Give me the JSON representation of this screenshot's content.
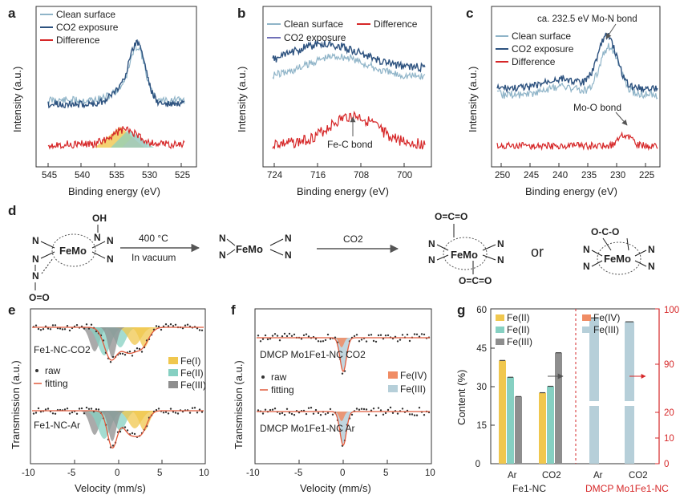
{
  "colors": {
    "clean": "#8fb4c8",
    "co2": "#2d527f",
    "diff": "#d62728",
    "fit": "#e15a3c",
    "fe3": "#f0c74e",
    "fe2": "#86d0c2",
    "fe4": "#8e8e8e",
    "dmcp_fe4": "#f08c64",
    "dmcp_fe3": "#b6cfd9",
    "red_axis": "#d62728"
  },
  "panels": {
    "a": {
      "label": "a",
      "legend": [
        "Clean surface",
        "CO2 exposure",
        "Difference"
      ],
      "xlabel": "Binding energy (eV)",
      "ylabel": "Intensity (a.u.)",
      "xticks": [
        "545",
        "540",
        "535",
        "530",
        "525"
      ]
    },
    "b": {
      "label": "b",
      "legend": [
        "Clean surface",
        "CO2 exposure",
        "Difference"
      ],
      "xlabel": "Binding energy (eV)",
      "ylabel": "Intensity (a.u.)",
      "xticks": [
        "724",
        "716",
        "708",
        "700"
      ],
      "annotation": "Fe-C bond"
    },
    "c": {
      "label": "c",
      "legend": [
        "Clean surface",
        "CO2 exposure",
        "Difference"
      ],
      "xlabel": "Binding energy (eV)",
      "ylabel": "Intensity (a.u.)",
      "xticks": [
        "250",
        "245",
        "240",
        "235",
        "230",
        "225"
      ],
      "annotation_top": "ca. 232.5 eV Mo-N bond",
      "annotation_mid": "Mo-O bond"
    },
    "d": {
      "label": "d",
      "step1_top": "400 °C",
      "step1_bottom": "In vacuum",
      "step2_top": "CO2",
      "or": "or",
      "center": "FeMo",
      "N": "N",
      "OH": "OH",
      "O=O": "O=O",
      "O=C=O": "O=C=O",
      "O-C-O": "O-C-O"
    },
    "e": {
      "label": "e",
      "sample_top": "Fe1-NC-CO2",
      "sample_bottom": "Fe1-NC-Ar",
      "legend_raw": "raw",
      "legend_fit": "fitting",
      "legend_species": [
        "Fe(I)",
        "Fe(II)",
        "Fe(III)"
      ],
      "xlabel": "Velocity (mm/s)",
      "ylabel": "Transmission (a.u.)",
      "xticks": [
        "-10",
        "-5",
        "0",
        "5",
        "10"
      ]
    },
    "f": {
      "label": "f",
      "sample_top": "DMCP Mo1Fe1-NC CO2",
      "sample_bottom": "DMCP Mo1Fe1-NC Ar",
      "legend_raw": "raw",
      "legend_fit": "fitting",
      "legend_species": [
        "Fe(IV)",
        "Fe(III)"
      ],
      "xlabel": "Velocity (mm/s)",
      "ylabel": "Transmission (a.u.)",
      "xticks": [
        "-10",
        "-5",
        "0",
        "5",
        "10"
      ]
    },
    "g": {
      "label": "g",
      "ylabel": "Content (%)",
      "yticks_left": [
        "0",
        "15",
        "30",
        "45",
        "60"
      ],
      "yticks_right": [
        "0",
        "10",
        "20",
        "90",
        "100"
      ],
      "legend_left": [
        "Fe(II)",
        "Fe(II)",
        "Fe(III)"
      ],
      "legend_right": [
        "Fe(IV)",
        "Fe(III)"
      ],
      "xcats": [
        "Ar",
        "CO2",
        "Ar",
        "CO2"
      ],
      "group_left": "Fe1-NC",
      "group_right": "DMCP Mo1Fe1-NC"
    }
  },
  "chart_data": [
    {
      "panel": "g",
      "type": "bar",
      "title": "",
      "ylabel": "Content (%)",
      "ylim": [
        0,
        60
      ],
      "categories": [
        "Ar",
        "CO2"
      ],
      "group": "Fe1-NC",
      "series": [
        {
          "name": "Fe(II) yellow",
          "values": [
            40,
            27.5
          ]
        },
        {
          "name": "Fe(II) teal",
          "values": [
            33.5,
            30
          ]
        },
        {
          "name": "Fe(III) gray",
          "values": [
            26,
            43
          ]
        }
      ]
    },
    {
      "panel": "g",
      "type": "bar",
      "title": "",
      "ylabel": "Content (%)",
      "ylim": [
        0,
        100
      ],
      "categories": [
        "Ar",
        "CO2"
      ],
      "group": "DMCP Mo1Fe1-NC",
      "series": [
        {
          "name": "Fe(IV)",
          "values": [
            8,
            11
          ]
        },
        {
          "name": "Fe(III)",
          "values": [
            93,
            90
          ]
        }
      ]
    }
  ]
}
